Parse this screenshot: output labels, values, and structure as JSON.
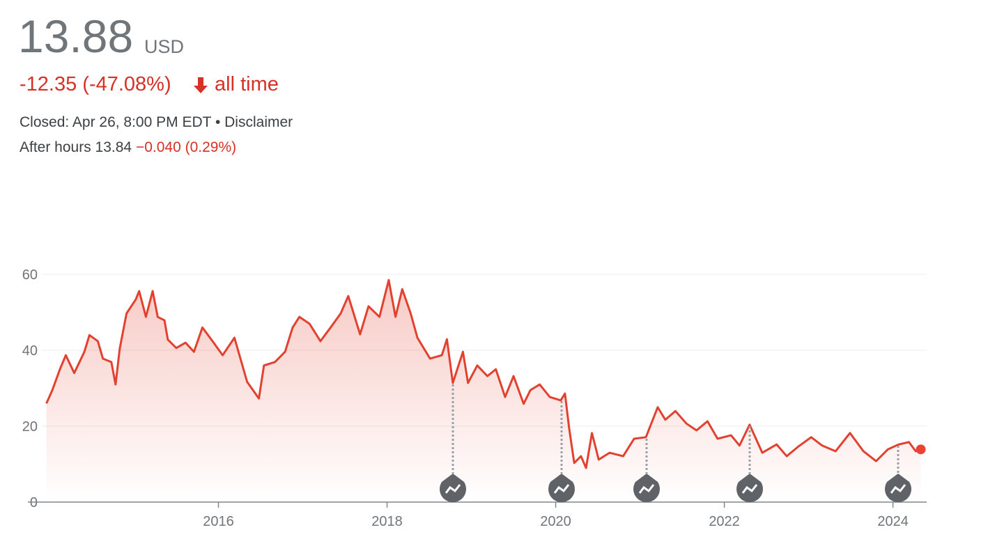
{
  "header": {
    "price": "13.88",
    "currency": "USD",
    "change": "-12.35 (-47.08%)",
    "period": "all time",
    "closed": "Closed: Apr 26, 8:00 PM EDT",
    "separator": "•",
    "disclaimer": "Disclaimer",
    "after_hours": "After hours 13.84",
    "after_hours_change": "−0.040 (0.29%)"
  },
  "chart_data": {
    "type": "line",
    "color": "#e3412f",
    "x": [
      2013.96,
      2014.03,
      2014.12,
      2014.19,
      2014.29,
      2014.41,
      2014.47,
      2014.57,
      2014.63,
      2014.73,
      2014.78,
      2014.83,
      2014.91,
      2015.02,
      2015.06,
      2015.14,
      2015.22,
      2015.28,
      2015.36,
      2015.4,
      2015.5,
      2015.61,
      2015.71,
      2015.81,
      2015.93,
      2016.05,
      2016.19,
      2016.34,
      2016.48,
      2016.54,
      2016.67,
      2016.79,
      2016.88,
      2016.96,
      2017.08,
      2017.21,
      2017.33,
      2017.45,
      2017.54,
      2017.68,
      2017.78,
      2017.91,
      2018.02,
      2018.1,
      2018.18,
      2018.28,
      2018.36,
      2018.51,
      2018.65,
      2018.71,
      2018.78,
      2018.9,
      2018.96,
      2019.07,
      2019.19,
      2019.29,
      2019.4,
      2019.5,
      2019.62,
      2019.7,
      2019.81,
      2019.93,
      2020.06,
      2020.11,
      2020.16,
      2020.22,
      2020.3,
      2020.36,
      2020.43,
      2020.51,
      2020.64,
      2020.8,
      2020.93,
      2021.07,
      2021.21,
      2021.3,
      2021.42,
      2021.55,
      2021.67,
      2021.8,
      2021.92,
      2022.08,
      2022.18,
      2022.3,
      2022.45,
      2022.62,
      2022.74,
      2022.87,
      2023.03,
      2023.16,
      2023.32,
      2023.49,
      2023.65,
      2023.8,
      2023.94,
      2024.07,
      2024.19,
      2024.27,
      2024.33
    ],
    "values": [
      26,
      29.5,
      35,
      38.7,
      34,
      39.6,
      44,
      42.4,
      37.8,
      36.9,
      31,
      40.5,
      49.7,
      53.4,
      55.6,
      48.8,
      55.6,
      48.8,
      47.9,
      42.8,
      40.6,
      42,
      39.6,
      46,
      42.4,
      38.7,
      43.3,
      31.7,
      27.3,
      36,
      36.9,
      39.6,
      46,
      48.8,
      47,
      42.4,
      46,
      49.7,
      54.3,
      44.2,
      51.6,
      48.8,
      58.5,
      48.8,
      56.1,
      49.7,
      43.3,
      37.8,
      38.7,
      42.9,
      31.4,
      39.6,
      31.4,
      36,
      33.2,
      35,
      27.7,
      33.2,
      25.9,
      29.5,
      31,
      27.7,
      26.8,
      28.6,
      19.4,
      10.3,
      12.1,
      9,
      18.2,
      11.2,
      13,
      12.1,
      16.7,
      17.1,
      25,
      21.7,
      24,
      20.7,
      18.9,
      21.3,
      16.7,
      17.6,
      14.9,
      20.4,
      13,
      15.2,
      12.1,
      14.5,
      17.1,
      14.9,
      13.4,
      18.2,
      13.4,
      10.8,
      13.9,
      15.2,
      15.8,
      13.4,
      13.88
    ],
    "xlim": [
      2013.74,
      2024.4
    ],
    "xticks": [
      2016,
      2018,
      2020,
      2022,
      2024
    ],
    "ylim": [
      0,
      60
    ],
    "yticks": [
      0,
      20,
      40,
      60
    ],
    "grid": true
  }
}
